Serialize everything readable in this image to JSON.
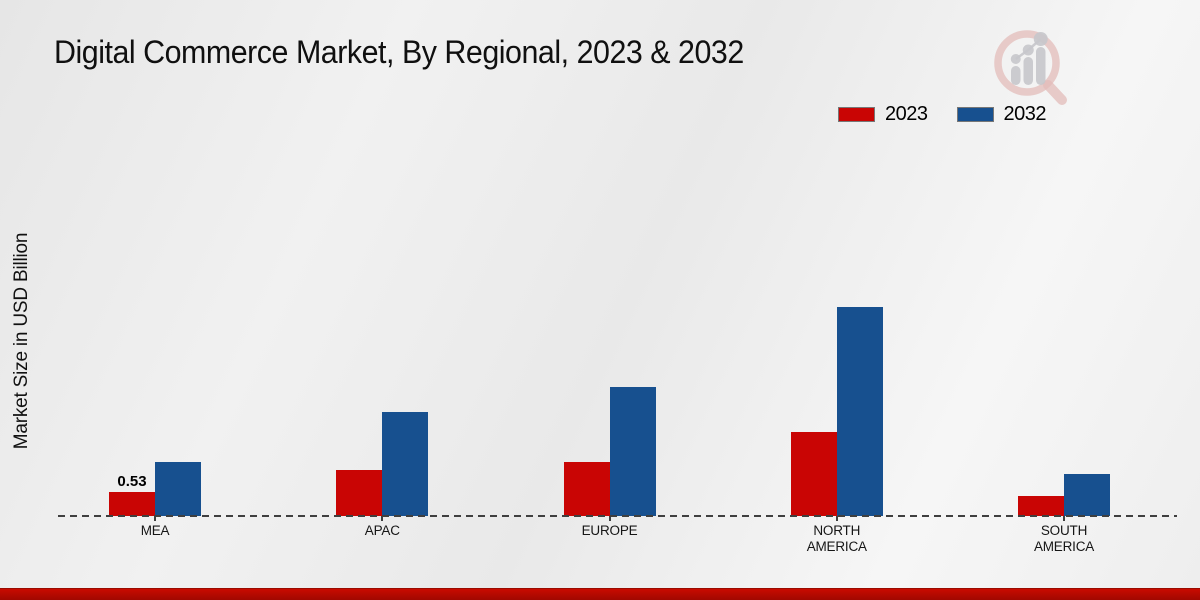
{
  "title": "Digital Commerce Market, By Regional, 2023 & 2032",
  "y_axis_label": "Market Size in USD Billion",
  "colors": {
    "series_2023": "#c90504",
    "series_2032": "#17508f",
    "footer_band": "#b50a00",
    "axis_line": "#3f3f3f",
    "background": "#ededed"
  },
  "icons": {
    "watermark": "magnifier-bar-chart-logo"
  },
  "legend": {
    "items": [
      "2023",
      "2032"
    ]
  },
  "chart_data": {
    "type": "bar",
    "title": "Digital Commerce Market, By Regional, 2023 & 2032",
    "categories": [
      "MEA",
      "APAC",
      "EUROPE",
      "NORTH AMERICA",
      "SOUTH AMERICA"
    ],
    "series": [
      {
        "name": "2023",
        "color": "#c90504",
        "values": [
          0.53,
          1.03,
          1.2,
          1.89,
          0.45
        ]
      },
      {
        "name": "2032",
        "color": "#17508f",
        "values": [
          1.21,
          2.33,
          2.89,
          4.68,
          0.95
        ]
      }
    ],
    "labeled_points": [
      {
        "series": "2023",
        "category": "MEA",
        "value_label": "0.53"
      }
    ],
    "xlabel": "",
    "ylabel": "Market Size in USD Billion",
    "ylim": [
      0,
      5
    ],
    "grid": false,
    "legend_position": "top-right",
    "baseline_style": "dashed"
  }
}
